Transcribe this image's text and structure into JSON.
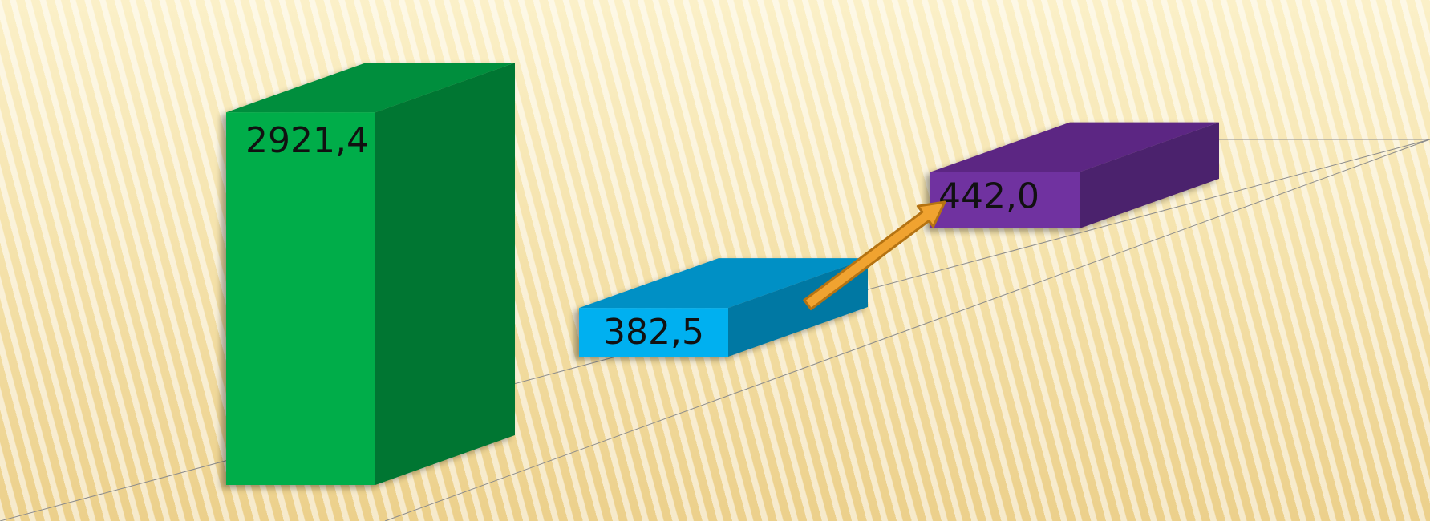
{
  "chart_data": {
    "type": "bar",
    "style": "3d-columns",
    "categories": [
      "",
      "",
      ""
    ],
    "values": [
      2921.4,
      382.5,
      442.0
    ],
    "data_labels": [
      "2921,4",
      "382,5",
      "442,0"
    ],
    "series": [
      {
        "values": [
          2921.4,
          382.5,
          442.0
        ]
      }
    ],
    "colors": {
      "bar_1": "#00ad4a",
      "bar_2": "#00b0f0",
      "bar_3": "#7030a0",
      "arrow": "#f0a330",
      "gridline": "#8c8c8c",
      "background": "#f3e0a8"
    },
    "annotations": [
      {
        "type": "arrow",
        "from": "382,5",
        "to": "442,0"
      }
    ],
    "title": "",
    "xlabel": "",
    "ylabel": "",
    "legend": "none",
    "grid": false
  }
}
